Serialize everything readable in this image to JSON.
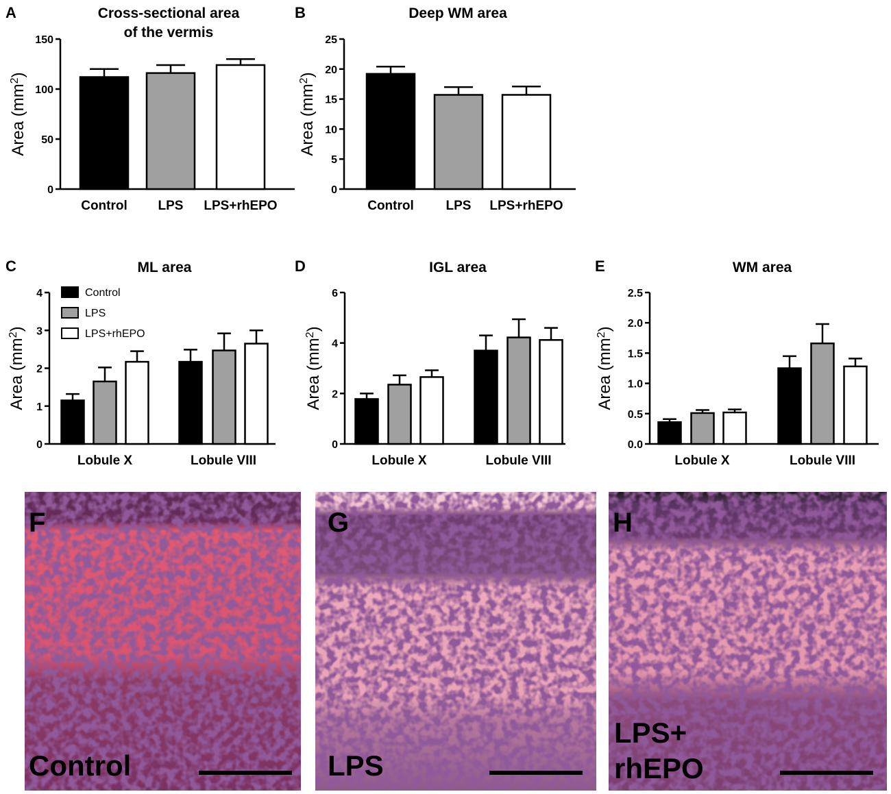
{
  "chart_data": [
    {
      "panel": "A",
      "type": "bar",
      "title": [
        "Cross-sectional area",
        "of the vermis"
      ],
      "ylabel": "Area (mm2)",
      "categories": [
        "Control",
        "LPS",
        "LPS+rhEPO"
      ],
      "values": [
        112,
        116,
        124
      ],
      "errors": [
        8,
        8,
        6
      ],
      "ylim": [
        0,
        150
      ],
      "yticks": [
        0,
        50,
        100,
        150
      ],
      "colors": [
        "#000000",
        "#a0a0a0",
        "#ffffff"
      ]
    },
    {
      "panel": "B",
      "type": "bar",
      "title": [
        "Deep WM area"
      ],
      "ylabel": "Area (mm2)",
      "categories": [
        "Control",
        "LPS",
        "LPS+rhEPO"
      ],
      "values": [
        19.2,
        15.7,
        15.7
      ],
      "errors": [
        1.2,
        1.3,
        1.4
      ],
      "ylim": [
        0,
        25
      ],
      "yticks": [
        0,
        5,
        10,
        15,
        20,
        25
      ],
      "colors": [
        "#000000",
        "#a0a0a0",
        "#ffffff"
      ]
    },
    {
      "panel": "C",
      "type": "bar",
      "title": [
        "ML area"
      ],
      "ylabel": "Area (mm2)",
      "categories": [
        "Lobule X",
        "Lobule VIII"
      ],
      "series": [
        {
          "name": "Control",
          "color": "#000000",
          "values": [
            1.15,
            2.17
          ],
          "errors": [
            0.17,
            0.32
          ]
        },
        {
          "name": "LPS",
          "color": "#a0a0a0",
          "values": [
            1.65,
            2.47
          ],
          "errors": [
            0.37,
            0.45
          ]
        },
        {
          "name": "LPS+rhEPO",
          "color": "#ffffff",
          "values": [
            2.17,
            2.65
          ],
          "errors": [
            0.28,
            0.35
          ]
        }
      ],
      "ylim": [
        0,
        4
      ],
      "yticks": [
        0,
        1,
        2,
        3,
        4
      ],
      "legend": "top-left"
    },
    {
      "panel": "D",
      "type": "bar",
      "title": [
        "IGL area"
      ],
      "ylabel": "Area (mm2)",
      "categories": [
        "Lobule X",
        "Lobule VIII"
      ],
      "series": [
        {
          "name": "Control",
          "color": "#000000",
          "values": [
            1.78,
            3.7
          ],
          "errors": [
            0.22,
            0.6
          ]
        },
        {
          "name": "LPS",
          "color": "#a0a0a0",
          "values": [
            2.35,
            4.22
          ],
          "errors": [
            0.37,
            0.72
          ]
        },
        {
          "name": "LPS+rhEPO",
          "color": "#ffffff",
          "values": [
            2.65,
            4.12
          ],
          "errors": [
            0.27,
            0.48
          ]
        }
      ],
      "ylim": [
        0,
        6
      ],
      "yticks": [
        0,
        2,
        4,
        6
      ]
    },
    {
      "panel": "E",
      "type": "bar",
      "title": [
        "WM area"
      ],
      "ylabel": "Area (mm2)",
      "categories": [
        "Lobule X",
        "Lobule VIII"
      ],
      "series": [
        {
          "name": "Control",
          "color": "#000000",
          "values": [
            0.36,
            1.25
          ],
          "errors": [
            0.05,
            0.2
          ]
        },
        {
          "name": "LPS",
          "color": "#a0a0a0",
          "values": [
            0.51,
            1.66
          ],
          "errors": [
            0.05,
            0.32
          ]
        },
        {
          "name": "LPS+rhEPO",
          "color": "#ffffff",
          "values": [
            0.52,
            1.28
          ],
          "errors": [
            0.05,
            0.13
          ]
        }
      ],
      "ylim": [
        0,
        2.5
      ],
      "yticks": [
        "0.0",
        "0.5",
        "1.0",
        "1.5",
        "2.0",
        "2.5"
      ]
    }
  ],
  "micrographs": [
    {
      "letter": "F",
      "caption": [
        "Control"
      ]
    },
    {
      "letter": "G",
      "caption": [
        "LPS"
      ]
    },
    {
      "letter": "H",
      "caption": [
        "LPS+",
        "rhEPO"
      ]
    }
  ]
}
